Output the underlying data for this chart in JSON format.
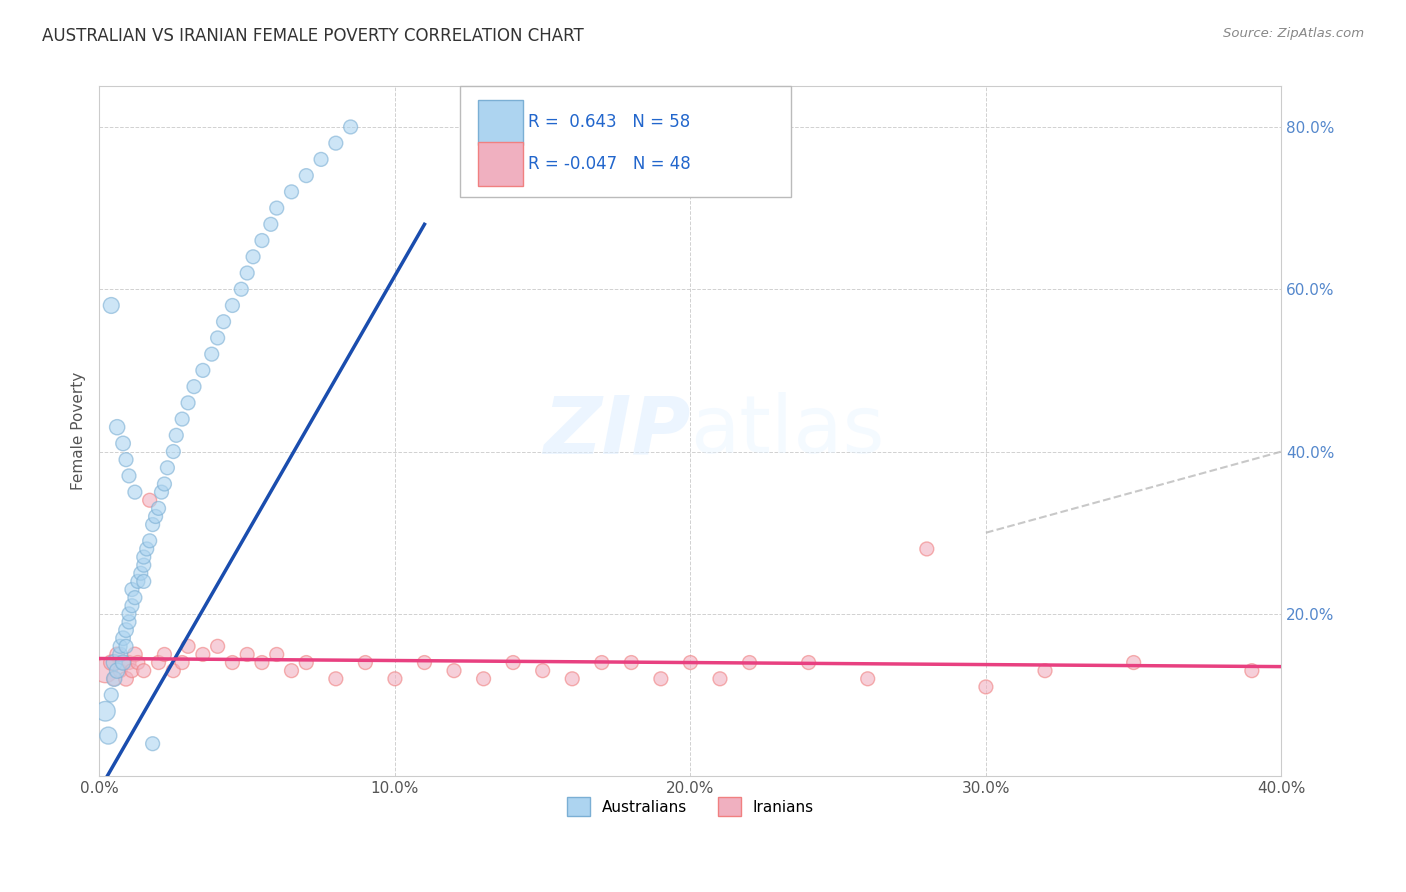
{
  "title": "AUSTRALIAN VS IRANIAN FEMALE POVERTY CORRELATION CHART",
  "source": "Source: ZipAtlas.com",
  "ylabel": "Female Poverty",
  "xlim": [
    0.0,
    0.4
  ],
  "ylim": [
    0.0,
    0.85
  ],
  "x_ticks": [
    0.0,
    0.1,
    0.2,
    0.3,
    0.4
  ],
  "y_ticks": [
    0.0,
    0.2,
    0.4,
    0.6,
    0.8
  ],
  "aus_color": "#7BAFD4",
  "aus_fill": "#ADD4F0",
  "iran_color": "#F08080",
  "iran_fill": "#F0B0C0",
  "aus_R": 0.643,
  "aus_N": 58,
  "iran_R": -0.047,
  "iran_N": 48,
  "diag_line_color": "#BBBBBB",
  "aus_reg_color": "#1A4DAE",
  "iran_reg_color": "#E84080",
  "watermark_zip": "ZIP",
  "watermark_atlas": "atlas",
  "background": "#FFFFFF",
  "legend_label_aus": "Australians",
  "legend_label_iran": "Iranians",
  "aus_points_x": [
    0.002,
    0.003,
    0.004,
    0.005,
    0.005,
    0.006,
    0.007,
    0.007,
    0.008,
    0.008,
    0.009,
    0.009,
    0.01,
    0.01,
    0.011,
    0.011,
    0.012,
    0.013,
    0.014,
    0.015,
    0.015,
    0.016,
    0.017,
    0.018,
    0.019,
    0.02,
    0.021,
    0.022,
    0.023,
    0.025,
    0.026,
    0.028,
    0.03,
    0.032,
    0.035,
    0.038,
    0.04,
    0.042,
    0.045,
    0.048,
    0.05,
    0.052,
    0.055,
    0.058,
    0.06,
    0.065,
    0.07,
    0.075,
    0.08,
    0.085,
    0.004,
    0.006,
    0.008,
    0.009,
    0.01,
    0.012,
    0.015,
    0.018
  ],
  "aus_points_y": [
    0.08,
    0.05,
    0.1,
    0.12,
    0.14,
    0.13,
    0.15,
    0.16,
    0.14,
    0.17,
    0.16,
    0.18,
    0.19,
    0.2,
    0.21,
    0.23,
    0.22,
    0.24,
    0.25,
    0.26,
    0.27,
    0.28,
    0.29,
    0.31,
    0.32,
    0.33,
    0.35,
    0.36,
    0.38,
    0.4,
    0.42,
    0.44,
    0.46,
    0.48,
    0.5,
    0.52,
    0.54,
    0.56,
    0.58,
    0.6,
    0.62,
    0.64,
    0.66,
    0.68,
    0.7,
    0.72,
    0.74,
    0.76,
    0.78,
    0.8,
    0.58,
    0.43,
    0.41,
    0.39,
    0.37,
    0.35,
    0.24,
    0.04
  ],
  "aus_sizes": [
    200,
    150,
    100,
    120,
    130,
    120,
    110,
    100,
    120,
    110,
    100,
    110,
    100,
    100,
    100,
    100,
    100,
    100,
    100,
    100,
    100,
    100,
    100,
    100,
    100,
    100,
    100,
    100,
    100,
    100,
    100,
    100,
    100,
    100,
    100,
    100,
    100,
    100,
    100,
    100,
    100,
    100,
    100,
    100,
    100,
    100,
    100,
    100,
    100,
    100,
    130,
    120,
    110,
    100,
    100,
    100,
    100,
    100
  ],
  "iran_points_x": [
    0.002,
    0.004,
    0.005,
    0.006,
    0.007,
    0.008,
    0.009,
    0.01,
    0.011,
    0.012,
    0.013,
    0.015,
    0.017,
    0.02,
    0.022,
    0.025,
    0.028,
    0.03,
    0.035,
    0.04,
    0.045,
    0.05,
    0.055,
    0.06,
    0.065,
    0.07,
    0.08,
    0.09,
    0.1,
    0.11,
    0.12,
    0.13,
    0.14,
    0.15,
    0.16,
    0.17,
    0.18,
    0.19,
    0.2,
    0.21,
    0.22,
    0.24,
    0.26,
    0.28,
    0.3,
    0.32,
    0.35,
    0.39
  ],
  "iran_points_y": [
    0.13,
    0.14,
    0.12,
    0.15,
    0.13,
    0.14,
    0.12,
    0.14,
    0.13,
    0.15,
    0.14,
    0.13,
    0.34,
    0.14,
    0.15,
    0.13,
    0.14,
    0.16,
    0.15,
    0.16,
    0.14,
    0.15,
    0.14,
    0.15,
    0.13,
    0.14,
    0.12,
    0.14,
    0.12,
    0.14,
    0.13,
    0.12,
    0.14,
    0.13,
    0.12,
    0.14,
    0.14,
    0.12,
    0.14,
    0.12,
    0.14,
    0.14,
    0.12,
    0.28,
    0.11,
    0.13,
    0.14,
    0.13
  ],
  "iran_sizes": [
    300,
    120,
    100,
    110,
    100,
    100,
    110,
    100,
    100,
    110,
    100,
    100,
    100,
    100,
    100,
    100,
    100,
    100,
    100,
    100,
    100,
    100,
    100,
    100,
    100,
    100,
    100,
    100,
    100,
    100,
    100,
    100,
    100,
    100,
    100,
    100,
    100,
    100,
    100,
    100,
    100,
    100,
    100,
    100,
    100,
    100,
    100,
    100
  ]
}
